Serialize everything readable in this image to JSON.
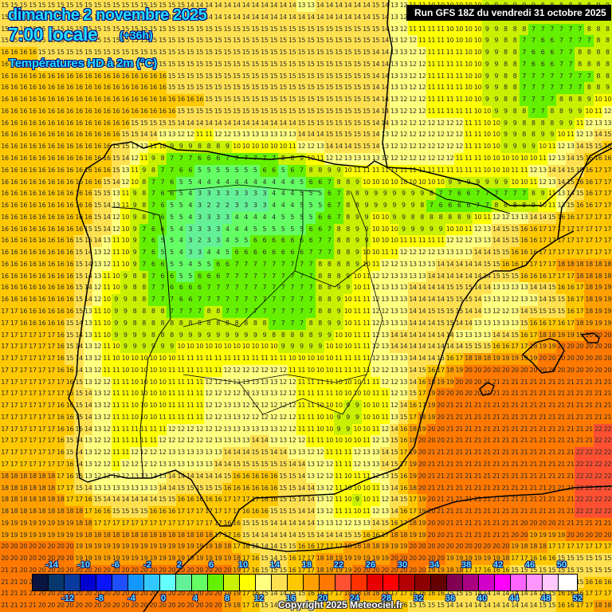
{
  "header": {
    "date": "dimanche 2 novembre 2025",
    "time": "7:00 locale",
    "lead": "(+36h)",
    "parameter": "Températures HD à 2m (°C)",
    "run": "Run GFS 18Z du vendredi 31 octobre 2025"
  },
  "footer": {
    "copyright": "Copyright 2025 Meteociel.fr"
  },
  "legend": {
    "top_labels": [
      "-14",
      "-10",
      "-6",
      "-2",
      "2",
      "6",
      "10",
      "14",
      "18",
      "22",
      "26",
      "30",
      "34",
      "38",
      "42",
      "46",
      "50"
    ],
    "bottom_labels": [
      "-12",
      "-8",
      "-4",
      "0",
      "4",
      "8",
      "12",
      "16",
      "20",
      "24",
      "28",
      "32",
      "36",
      "40",
      "44",
      "48",
      "52"
    ],
    "colors": [
      "#0a1440",
      "#06386e",
      "#0a3aa0",
      "#0000d0",
      "#0a14ff",
      "#1e50ff",
      "#1496ff",
      "#32c8ff",
      "#64ffff",
      "#64f096",
      "#64ff64",
      "#64f000",
      "#c8f000",
      "#ffff00",
      "#ffff80",
      "#ffe050",
      "#ffc800",
      "#ffa000",
      "#ff7800",
      "#ff5032",
      "#ff3200",
      "#e60000",
      "#ff0000",
      "#b40000",
      "#8c0000",
      "#640000",
      "#820050",
      "#aa0082",
      "#d200c8",
      "#ff00ff",
      "#ff64ff",
      "#ff96ff",
      "#ffc8ff",
      "#ffffff"
    ]
  },
  "map": {
    "region": "Péninsule Ibérique",
    "grid_cols": 66,
    "grid_rows": 52,
    "coarse_cols": 33,
    "coarse_rows": 26,
    "coarse_temperatures": [
      [
        15,
        15,
        15,
        15,
        15,
        15,
        15,
        15,
        15,
        15,
        14,
        14,
        14,
        14,
        14,
        14,
        13,
        14,
        14,
        14,
        15,
        12,
        11,
        10,
        10,
        10,
        9,
        9,
        9,
        8,
        8,
        8,
        9
      ],
      [
        15,
        15,
        15,
        15,
        15,
        15,
        15,
        15,
        15,
        15,
        15,
        15,
        15,
        15,
        15,
        15,
        15,
        15,
        15,
        15,
        15,
        12,
        11,
        11,
        10,
        10,
        9,
        8,
        7,
        6,
        7,
        7,
        8
      ],
      [
        16,
        16,
        15,
        15,
        15,
        15,
        15,
        15,
        15,
        15,
        15,
        15,
        15,
        15,
        15,
        15,
        15,
        15,
        15,
        15,
        14,
        13,
        12,
        11,
        11,
        10,
        9,
        8,
        6,
        5,
        7,
        8,
        8
      ],
      [
        16,
        16,
        16,
        16,
        16,
        16,
        16,
        16,
        16,
        15,
        15,
        15,
        15,
        15,
        15,
        15,
        15,
        15,
        15,
        15,
        14,
        13,
        12,
        11,
        11,
        10,
        9,
        8,
        7,
        7,
        7,
        7,
        8
      ],
      [
        16,
        16,
        16,
        16,
        16,
        16,
        16,
        16,
        16,
        16,
        16,
        15,
        15,
        15,
        15,
        15,
        15,
        15,
        15,
        15,
        14,
        12,
        12,
        11,
        11,
        10,
        9,
        8,
        7,
        7,
        8,
        9,
        11
      ],
      [
        16,
        16,
        16,
        16,
        16,
        16,
        16,
        15,
        15,
        14,
        13,
        13,
        14,
        14,
        14,
        14,
        15,
        15,
        15,
        15,
        14,
        12,
        12,
        12,
        12,
        11,
        10,
        9,
        8,
        8,
        9,
        12,
        14
      ],
      [
        16,
        16,
        16,
        16,
        16,
        16,
        15,
        12,
        9,
        7,
        7,
        6,
        8,
        8,
        8,
        9,
        11,
        13,
        14,
        15,
        13,
        12,
        12,
        12,
        12,
        11,
        10,
        9,
        9,
        11,
        13,
        15,
        16
      ],
      [
        16,
        16,
        16,
        16,
        16,
        16,
        14,
        9,
        7,
        6,
        5,
        5,
        4,
        4,
        5,
        4,
        6,
        7,
        8,
        10,
        11,
        10,
        11,
        11,
        10,
        11,
        10,
        11,
        12,
        14,
        15,
        16,
        17
      ],
      [
        16,
        16,
        16,
        16,
        16,
        15,
        12,
        8,
        6,
        5,
        3,
        2,
        2,
        3,
        3,
        4,
        5,
        5,
        8,
        8,
        9,
        9,
        9,
        6,
        5,
        5,
        6,
        5,
        6,
        8,
        13,
        16,
        17
      ],
      [
        16,
        16,
        16,
        16,
        16,
        15,
        11,
        8,
        6,
        5,
        3,
        3,
        4,
        4,
        4,
        5,
        5,
        6,
        8,
        9,
        10,
        9,
        8,
        8,
        9,
        11,
        13,
        15,
        16,
        17,
        17,
        17,
        17
      ],
      [
        16,
        16,
        16,
        16,
        15,
        13,
        10,
        8,
        5,
        4,
        2,
        3,
        5,
        6,
        6,
        6,
        6,
        7,
        8,
        9,
        10,
        11,
        12,
        12,
        13,
        13,
        14,
        15,
        16,
        17,
        17,
        17,
        17
      ],
      [
        16,
        16,
        16,
        16,
        15,
        12,
        10,
        8,
        6,
        5,
        5,
        6,
        7,
        7,
        7,
        7,
        7,
        8,
        8,
        10,
        12,
        13,
        13,
        14,
        14,
        14,
        15,
        16,
        17,
        17,
        18,
        18,
        18
      ],
      [
        16,
        16,
        16,
        16,
        15,
        11,
        9,
        8,
        7,
        6,
        6,
        7,
        7,
        7,
        7,
        7,
        7,
        8,
        9,
        11,
        13,
        13,
        14,
        14,
        15,
        15,
        13,
        12,
        12,
        14,
        15,
        18,
        19
      ],
      [
        17,
        16,
        16,
        16,
        14,
        10,
        9,
        8,
        8,
        7,
        7,
        8,
        7,
        7,
        7,
        7,
        7,
        8,
        9,
        11,
        12,
        13,
        14,
        15,
        15,
        14,
        12,
        12,
        15,
        16,
        15,
        18,
        19
      ],
      [
        17,
        17,
        17,
        16,
        13,
        11,
        9,
        9,
        8,
        9,
        9,
        10,
        9,
        9,
        9,
        8,
        8,
        9,
        10,
        11,
        13,
        14,
        14,
        13,
        13,
        13,
        14,
        15,
        17,
        19,
        20,
        20,
        20
      ],
      [
        17,
        17,
        17,
        16,
        13,
        11,
        10,
        10,
        10,
        11,
        11,
        11,
        12,
        12,
        12,
        11,
        10,
        10,
        11,
        11,
        12,
        13,
        14,
        15,
        18,
        20,
        20,
        20,
        20,
        20,
        20,
        20,
        20
      ],
      [
        17,
        17,
        17,
        17,
        14,
        12,
        11,
        10,
        10,
        11,
        11,
        12,
        12,
        13,
        13,
        12,
        11,
        11,
        10,
        10,
        11,
        12,
        15,
        20,
        20,
        20,
        21,
        21,
        21,
        21,
        21,
        21,
        21
      ],
      [
        17,
        17,
        17,
        16,
        14,
        12,
        11,
        10,
        10,
        11,
        11,
        12,
        13,
        12,
        12,
        12,
        11,
        10,
        9,
        9,
        10,
        13,
        17,
        20,
        21,
        21,
        21,
        21,
        21,
        21,
        21,
        21,
        21
      ],
      [
        17,
        17,
        17,
        16,
        14,
        12,
        11,
        11,
        11,
        12,
        12,
        12,
        13,
        13,
        13,
        12,
        11,
        10,
        9,
        10,
        12,
        15,
        19,
        20,
        21,
        21,
        21,
        21,
        21,
        21,
        21,
        21,
        22
      ],
      [
        17,
        17,
        17,
        16,
        13,
        12,
        11,
        12,
        12,
        13,
        13,
        13,
        14,
        15,
        15,
        14,
        13,
        12,
        11,
        13,
        14,
        16,
        20,
        21,
        21,
        21,
        21,
        21,
        21,
        21,
        21,
        22,
        22
      ],
      [
        18,
        18,
        18,
        17,
        14,
        12,
        12,
        13,
        13,
        14,
        14,
        14,
        16,
        16,
        16,
        15,
        14,
        12,
        10,
        10,
        12,
        15,
        20,
        21,
        21,
        21,
        21,
        21,
        21,
        21,
        21,
        22,
        22
      ],
      [
        18,
        18,
        18,
        18,
        17,
        15,
        14,
        14,
        15,
        16,
        17,
        17,
        17,
        17,
        16,
        15,
        14,
        12,
        10,
        9,
        11,
        14,
        18,
        21,
        21,
        21,
        21,
        21,
        21,
        21,
        21,
        22,
        22
      ],
      [
        19,
        19,
        19,
        19,
        18,
        18,
        18,
        18,
        18,
        18,
        17,
        17,
        16,
        14,
        14,
        14,
        14,
        13,
        13,
        14,
        16,
        17,
        19,
        20,
        21,
        21,
        21,
        21,
        20,
        20,
        21,
        21,
        21
      ],
      [
        20,
        20,
        20,
        20,
        19,
        19,
        19,
        19,
        19,
        19,
        19,
        19,
        18,
        16,
        14,
        15,
        17,
        18,
        19,
        19,
        19,
        20,
        20,
        20,
        20,
        20,
        20,
        19,
        17,
        17,
        15,
        15,
        15
      ],
      [
        21,
        20,
        20,
        20,
        20,
        20,
        20,
        20,
        20,
        20,
        20,
        20,
        20,
        17,
        15,
        15,
        17,
        19,
        19,
        20,
        20,
        20,
        20,
        19,
        17,
        16,
        15,
        14,
        14,
        14,
        15,
        15,
        15
      ],
      [
        21,
        21,
        20,
        20,
        20,
        20,
        20,
        20,
        20,
        20,
        20,
        20,
        19,
        16,
        14,
        14,
        15,
        16,
        17,
        17,
        17,
        16,
        15,
        15,
        14,
        14,
        14,
        14,
        14,
        15,
        16,
        17,
        18
      ]
    ]
  }
}
